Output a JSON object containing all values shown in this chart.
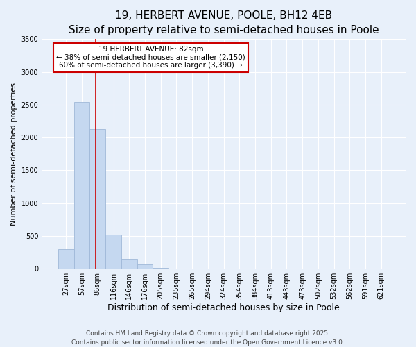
{
  "title": "19, HERBERT AVENUE, POOLE, BH12 4EB",
  "subtitle": "Size of property relative to semi-detached houses in Poole",
  "xlabel": "Distribution of semi-detached houses by size in Poole",
  "ylabel": "Number of semi-detached properties",
  "bin_labels": [
    "27sqm",
    "57sqm",
    "86sqm",
    "116sqm",
    "146sqm",
    "176sqm",
    "205sqm",
    "235sqm",
    "265sqm",
    "294sqm",
    "324sqm",
    "354sqm",
    "384sqm",
    "413sqm",
    "443sqm",
    "473sqm",
    "502sqm",
    "532sqm",
    "562sqm",
    "591sqm",
    "621sqm"
  ],
  "bar_values": [
    300,
    2540,
    2130,
    525,
    150,
    65,
    10,
    0,
    0,
    0,
    0,
    0,
    0,
    0,
    0,
    0,
    0,
    0,
    0,
    0,
    0
  ],
  "bar_color": "#c5d8f0",
  "bar_edge_color": "#a0b8d8",
  "vline_x": 1.86,
  "annotation_title": "19 HERBERT AVENUE: 82sqm",
  "annotation_line1": "← 38% of semi-detached houses are smaller (2,150)",
  "annotation_line2": "60% of semi-detached houses are larger (3,390) →",
  "annotation_box_color": "#ffffff",
  "annotation_box_edge": "#cc0000",
  "vline_color": "#cc0000",
  "ylim": [
    0,
    3500
  ],
  "background_color": "#e8f0fa",
  "footer1": "Contains HM Land Registry data © Crown copyright and database right 2025.",
  "footer2": "Contains public sector information licensed under the Open Government Licence v3.0.",
  "title_fontsize": 11,
  "subtitle_fontsize": 9.5,
  "xlabel_fontsize": 9,
  "ylabel_fontsize": 8,
  "tick_fontsize": 7,
  "annotation_fontsize": 7.5,
  "footer_fontsize": 6.5
}
